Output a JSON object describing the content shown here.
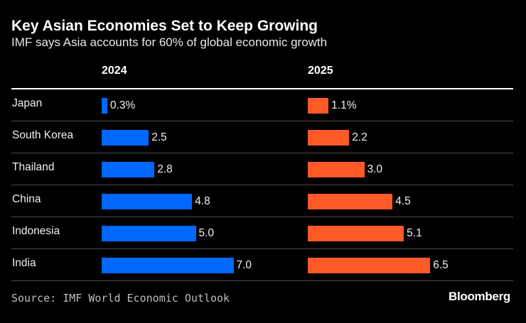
{
  "chart_data": {
    "type": "bar",
    "title": "Key Asian Economies Set to Keep Growing",
    "subtitle": "IMF says Asia accounts for 60% of global economic growth",
    "categories": [
      "Japan",
      "South Korea",
      "Thailand",
      "China",
      "Indonesia",
      "India"
    ],
    "series": [
      {
        "name": "2024",
        "color": "#0068ff",
        "values": [
          0.3,
          2.5,
          2.8,
          4.8,
          5.0,
          7.0
        ],
        "labels": [
          "0.3%",
          "2.5",
          "2.8",
          "4.8",
          "5.0",
          "7.0"
        ]
      },
      {
        "name": "2025",
        "color": "#ff5a28",
        "values": [
          1.1,
          2.2,
          3.0,
          4.5,
          5.1,
          6.5
        ],
        "labels": [
          "1.1%",
          "2.2",
          "3.0",
          "4.5",
          "5.1",
          "6.5"
        ]
      }
    ],
    "xlabel": "",
    "ylabel": "",
    "unit": "%",
    "source": "Source: IMF World Economic Outlook",
    "brand": "Bloomberg"
  }
}
